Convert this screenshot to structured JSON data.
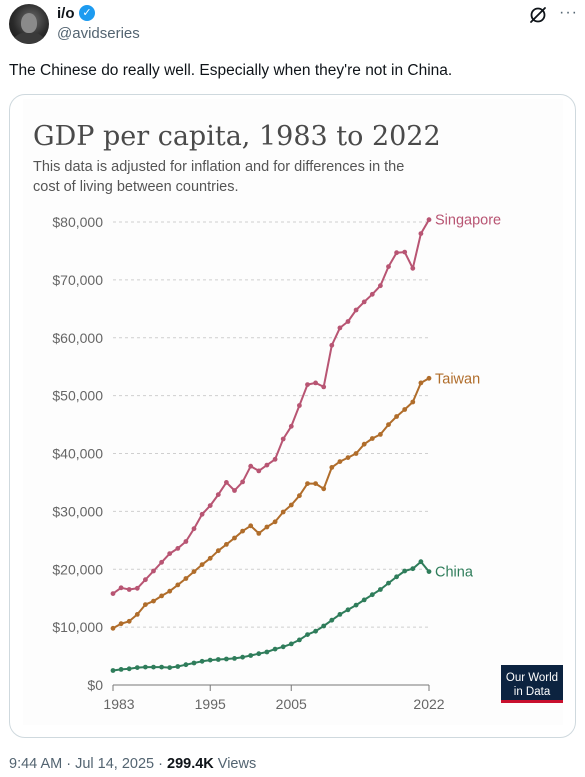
{
  "author": {
    "name": "i/o",
    "handle": "@avidseries",
    "verified_badge": "✓",
    "more_label": "···"
  },
  "tweet": {
    "text": "The Chinese do really well. Especially when they're not in China."
  },
  "meta": {
    "time": "9:44 AM",
    "separator1": " · ",
    "date": "Jul 14, 2025",
    "separator2": " · ",
    "views_count": "299.4K",
    "views_label": " Views"
  },
  "icons": {
    "grok": "grok-icon",
    "more": "more-icon",
    "verified": "verified-badge-icon"
  },
  "colors": {
    "singapore": "#b85573",
    "taiwan": "#b06d2b",
    "china": "#2f7d5b",
    "title": "#4a4a4a",
    "logo_bg": "#0c2340",
    "logo_accent": "#c8102e"
  },
  "chart_data": {
    "type": "line",
    "title": "GDP per capita, 1983 to 2022",
    "subtitle_line1": "This data is adjusted for inflation and for differences in the",
    "subtitle_line2": "cost of living between countries.",
    "xlim": [
      1983,
      2022
    ],
    "ylim": [
      0,
      80000
    ],
    "x_ticks": [
      "1983",
      "1995",
      "2005",
      "2022"
    ],
    "x_tick_values": [
      1983,
      1995,
      2005,
      2022
    ],
    "y_ticks": [
      "$0",
      "$10,000",
      "$20,000",
      "$30,000",
      "$40,000",
      "$50,000",
      "$60,000",
      "$70,000",
      "$80,000"
    ],
    "y_tick_values": [
      0,
      10000,
      20000,
      30000,
      40000,
      50000,
      60000,
      70000,
      80000
    ],
    "grid": true,
    "source_logo": [
      "Our World",
      "in Data"
    ],
    "x": [
      1983,
      1984,
      1985,
      1986,
      1987,
      1988,
      1989,
      1990,
      1991,
      1992,
      1993,
      1994,
      1995,
      1996,
      1997,
      1998,
      1999,
      2000,
      2001,
      2002,
      2003,
      2004,
      2005,
      2006,
      2007,
      2008,
      2009,
      2010,
      2011,
      2012,
      2013,
      2014,
      2015,
      2016,
      2017,
      2018,
      2019,
      2020,
      2021,
      2022
    ],
    "series": [
      {
        "name": "Singapore",
        "values": [
          15800,
          16800,
          16500,
          16700,
          18200,
          19700,
          21200,
          22700,
          23600,
          24800,
          27000,
          29500,
          31000,
          32900,
          35000,
          33600,
          35100,
          37800,
          37000,
          38000,
          39000,
          42500,
          44700,
          48300,
          51900,
          52200,
          51500,
          58700,
          61700,
          62800,
          64800,
          66200,
          67500,
          69000,
          72300,
          74700,
          74800,
          72000,
          78000,
          80400
        ]
      },
      {
        "name": "Taiwan",
        "values": [
          9800,
          10600,
          11000,
          12200,
          13900,
          14500,
          15400,
          16200,
          17300,
          18400,
          19600,
          20800,
          21900,
          23200,
          24300,
          25400,
          26600,
          27500,
          26200,
          27300,
          28200,
          29900,
          31100,
          32700,
          34800,
          34800,
          33900,
          37600,
          38600,
          39300,
          40000,
          41600,
          42600,
          43300,
          45000,
          46400,
          47600,
          48900,
          52200,
          53000
        ]
      },
      {
        "name": "China",
        "values": [
          2500,
          2700,
          2800,
          3000,
          3100,
          3100,
          3100,
          3000,
          3200,
          3500,
          3800,
          4100,
          4300,
          4400,
          4500,
          4600,
          4800,
          5100,
          5400,
          5700,
          6200,
          6600,
          7100,
          7800,
          8700,
          9300,
          10200,
          11200,
          12200,
          13000,
          13800,
          14700,
          15600,
          16500,
          17600,
          18700,
          19700,
          20100,
          21300,
          19600
        ]
      }
    ]
  }
}
